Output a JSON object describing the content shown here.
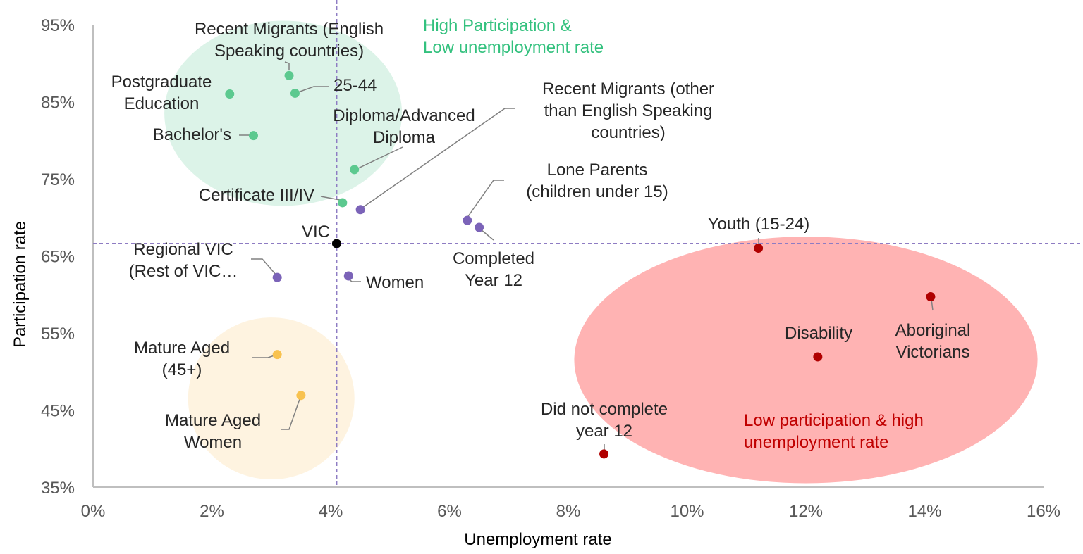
{
  "chart_data": {
    "type": "scatter",
    "xlabel": "Unemployment rate",
    "ylabel": "Participation rate",
    "xlim": [
      0,
      16
    ],
    "ylim": [
      35,
      95
    ],
    "x_ticks": [
      "0%",
      "2%",
      "4%",
      "6%",
      "8%",
      "10%",
      "12%",
      "14%",
      "16%"
    ],
    "y_ticks": [
      "35%",
      "45%",
      "55%",
      "65%",
      "75%",
      "85%",
      "95%"
    ],
    "reference_lines": {
      "x": 4.1,
      "y": 66.6
    },
    "zones": [
      {
        "id": "high",
        "label_lines": [
          "High Participation &",
          "Low unemployment rate"
        ],
        "color": "#33c17e",
        "fill": "#dcf3e8",
        "center": [
          3.2,
          83.5
        ],
        "radius": [
          2.0,
          12.0
        ]
      },
      {
        "id": "mature",
        "label_lines": [],
        "color": "#fde9c8",
        "fill": "#fef3e0",
        "center": [
          3.0,
          46.5
        ],
        "radius": [
          1.4,
          10.5
        ]
      },
      {
        "id": "low",
        "label_lines": [
          "Low participation & high",
          "unemployment rate"
        ],
        "color": "#c00000",
        "fill": "#ffb3b3",
        "center": [
          12.0,
          51.5
        ],
        "radius": [
          3.9,
          16.0
        ]
      }
    ],
    "colors": {
      "green": "#5cc98f",
      "purple": "#7b63b8",
      "yellow": "#f8c24f",
      "red": "#b00000",
      "black": "#000000",
      "leader": "#808080",
      "ref": "#8e7cc3"
    },
    "points": [
      {
        "id": "vic",
        "label_lines": [
          "VIC"
        ],
        "x": 4.1,
        "y": 66.6,
        "color": "black"
      },
      {
        "id": "recent-migrants-english",
        "label_lines": [
          "Recent Migrants (English",
          "Speaking countries)"
        ],
        "x": 3.3,
        "y": 88.4,
        "color": "green"
      },
      {
        "id": "age-25-44",
        "label_lines": [
          "25-44"
        ],
        "x": 3.4,
        "y": 86.1,
        "color": "green"
      },
      {
        "id": "postgraduate",
        "label_lines": [
          "Postgraduate",
          "Education"
        ],
        "x": 2.3,
        "y": 86.0,
        "color": "green"
      },
      {
        "id": "bachelors",
        "label_lines": [
          "Bachelor's"
        ],
        "x": 2.7,
        "y": 80.6,
        "color": "green"
      },
      {
        "id": "diploma",
        "label_lines": [
          "Diploma/Advanced",
          "Diploma"
        ],
        "x": 4.4,
        "y": 76.2,
        "color": "green"
      },
      {
        "id": "certificate",
        "label_lines": [
          "Certificate III/IV"
        ],
        "x": 4.2,
        "y": 71.9,
        "color": "green"
      },
      {
        "id": "recent-migrants-other",
        "label_lines": [
          "Recent Migrants (other",
          "than English Speaking",
          "countries)"
        ],
        "x": 4.5,
        "y": 71.0,
        "color": "purple"
      },
      {
        "id": "lone-parents",
        "label_lines": [
          "Lone Parents",
          "(children under 15)"
        ],
        "x": 6.3,
        "y": 69.6,
        "color": "purple"
      },
      {
        "id": "completed-year-12",
        "label_lines": [
          "Completed",
          "Year 12"
        ],
        "x": 6.5,
        "y": 68.7,
        "color": "purple"
      },
      {
        "id": "regional-vic",
        "label_lines": [
          "Regional VIC",
          "(Rest of VIC…"
        ],
        "x": 3.1,
        "y": 62.2,
        "color": "purple"
      },
      {
        "id": "women",
        "label_lines": [
          "Women"
        ],
        "x": 4.3,
        "y": 62.4,
        "color": "purple"
      },
      {
        "id": "mature-aged",
        "label_lines": [
          "Mature Aged",
          "(45+)"
        ],
        "x": 3.1,
        "y": 52.2,
        "color": "yellow"
      },
      {
        "id": "mature-aged-women",
        "label_lines": [
          "Mature Aged",
          "Women"
        ],
        "x": 3.5,
        "y": 46.9,
        "color": "yellow"
      },
      {
        "id": "youth",
        "label_lines": [
          "Youth (15-24)"
        ],
        "x": 11.2,
        "y": 66.0,
        "color": "red"
      },
      {
        "id": "aboriginal",
        "label_lines": [
          "Aboriginal",
          "Victorians"
        ],
        "x": 14.1,
        "y": 59.7,
        "color": "red"
      },
      {
        "id": "disability",
        "label_lines": [
          "Disability"
        ],
        "x": 12.2,
        "y": 51.9,
        "color": "red"
      },
      {
        "id": "did-not-complete",
        "label_lines": [
          "Did not complete",
          "year 12"
        ],
        "x": 8.6,
        "y": 39.3,
        "color": "red"
      }
    ]
  }
}
